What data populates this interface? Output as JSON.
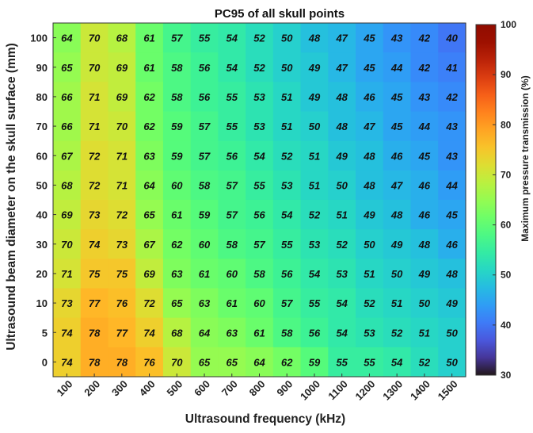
{
  "chart_data": {
    "type": "heatmap",
    "title": "PC95 of all skull points",
    "xlabel": "Ultrasound frequency (kHz)",
    "ylabel": "Ultrasound beam diameter on the skull surface (mm)",
    "colorbar_label": "Maximum pressure transmission (%)",
    "colorbar_range": [
      30,
      100
    ],
    "colorbar_ticks": [
      "30",
      "40",
      "50",
      "60",
      "70",
      "80",
      "90",
      "100"
    ],
    "colormap": "turbo",
    "x": [
      "100",
      "200",
      "300",
      "400",
      "500",
      "600",
      "700",
      "800",
      "900",
      "1000",
      "1100",
      "1200",
      "1300",
      "1400",
      "1500"
    ],
    "y": [
      "100",
      "90",
      "80",
      "70",
      "60",
      "50",
      "40",
      "30",
      "20",
      "10",
      "5",
      "0"
    ],
    "values": [
      [
        64,
        70,
        68,
        61,
        57,
        55,
        54,
        52,
        50,
        48,
        47,
        45,
        43,
        42,
        40
      ],
      [
        65,
        70,
        69,
        61,
        58,
        56,
        54,
        52,
        50,
        49,
        47,
        45,
        44,
        42,
        41
      ],
      [
        66,
        71,
        69,
        62,
        58,
        56,
        55,
        53,
        51,
        49,
        48,
        46,
        45,
        43,
        42
      ],
      [
        66,
        71,
        70,
        62,
        59,
        57,
        55,
        53,
        51,
        50,
        48,
        47,
        45,
        44,
        43
      ],
      [
        67,
        72,
        71,
        63,
        59,
        57,
        56,
        54,
        52,
        51,
        49,
        48,
        46,
        45,
        43
      ],
      [
        68,
        72,
        71,
        64,
        60,
        58,
        57,
        55,
        53,
        51,
        50,
        48,
        47,
        46,
        44
      ],
      [
        69,
        73,
        72,
        65,
        61,
        59,
        57,
        56,
        54,
        52,
        51,
        49,
        48,
        46,
        45
      ],
      [
        70,
        74,
        73,
        67,
        62,
        60,
        58,
        57,
        55,
        53,
        52,
        50,
        49,
        48,
        46
      ],
      [
        71,
        75,
        75,
        69,
        63,
        61,
        60,
        58,
        56,
        54,
        53,
        51,
        50,
        49,
        48
      ],
      [
        73,
        77,
        76,
        72,
        65,
        63,
        61,
        60,
        57,
        55,
        54,
        52,
        51,
        50,
        49
      ],
      [
        74,
        78,
        77,
        74,
        68,
        64,
        63,
        61,
        58,
        56,
        54,
        53,
        52,
        51,
        50
      ],
      [
        74,
        78,
        78,
        76,
        70,
        65,
        65,
        64,
        62,
        59,
        55,
        55,
        54,
        52,
        50
      ]
    ]
  }
}
